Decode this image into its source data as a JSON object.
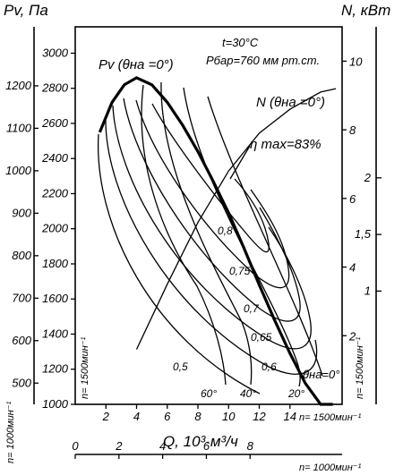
{
  "chart_data": {
    "type": "line",
    "title": "",
    "axes": {
      "q_axis": {
        "label": "Q, 10³·м³/ч",
        "ticks": [
          2,
          4,
          6,
          8,
          10,
          12,
          14
        ],
        "range": [
          0,
          17.4
        ],
        "rpm_label": "n= 1500мин⁻¹"
      },
      "q_axis_1000": {
        "ticks": [
          0,
          2,
          4,
          6,
          8
        ],
        "rpm_label": "n= 1000мин⁻¹"
      },
      "pv_axis": {
        "label": "Pv, Па",
        "ticks": [
          1000,
          1200,
          1400,
          1600,
          1800,
          2000,
          2200,
          2400,
          2600,
          2800,
          3000
        ],
        "range": [
          1000,
          3150
        ],
        "rpm_label": "n= 1500мин⁻¹"
      },
      "pv_axis_1000": {
        "ticks": [
          500,
          600,
          700,
          800,
          900,
          1000,
          1100,
          1200
        ],
        "rpm_label": "n= 1000мин⁻¹"
      },
      "n_axis": {
        "label": "N, кВт",
        "ticks": [
          2,
          4,
          6,
          8,
          10
        ],
        "rpm_label": "n= 1500мин⁻¹"
      },
      "n_axis_1000": {
        "ticks": [
          1,
          1.5,
          2
        ]
      }
    },
    "conditions": [
      "t=30°C",
      "Pбар=760 мм рт.ст."
    ],
    "annotations": {
      "pv_curve": "Pv (θна =0°)",
      "n_curve": "N (θна =0°)",
      "eta_max": "η max=83%",
      "theta_zero": "θна=0°"
    },
    "series": [
      {
        "name": "Pv (θна =0°)",
        "role": "envelope",
        "x": [
          1.6,
          2.4,
          3.2,
          4.0,
          5.0,
          6.0,
          7.0,
          8.0,
          9.0,
          10.0,
          11.0,
          12.0,
          13.0,
          14.0,
          15.0,
          16.0,
          16.8
        ],
        "y": [
          2550,
          2720,
          2820,
          2860,
          2820,
          2720,
          2590,
          2440,
          2270,
          2090,
          1890,
          1680,
          1480,
          1290,
          1120,
          1000,
          1000
        ]
      },
      {
        "name": "N (θна =0°)",
        "role": "power",
        "x": [
          4.0,
          6.0,
          8.0,
          10.0,
          12.0,
          14.0,
          16.0,
          17.0
        ],
        "y": [
          1.6,
          3.5,
          5.3,
          6.8,
          7.9,
          8.6,
          9.1,
          9.2
        ]
      }
    ],
    "efficiency_labels": [
      "0,8",
      "0,75",
      "0,7",
      "0,65",
      "0,6",
      "0,5"
    ],
    "angle_labels": [
      "60°",
      "40°",
      "20°"
    ]
  }
}
